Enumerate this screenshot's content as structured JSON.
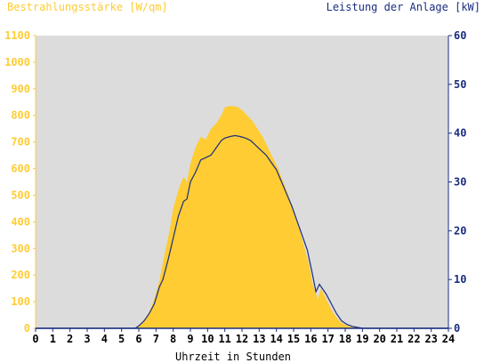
{
  "chart_data": {
    "type": "area",
    "left_axis_label": "Bestrahlungsstärke [W/qm]",
    "right_axis_label": "Leistung der Anlage [kW]",
    "xlabel": "Uhrzeit in Stunden",
    "xlim": [
      0,
      24
    ],
    "ylim_left": [
      0,
      1100
    ],
    "ylim_right": [
      0,
      60
    ],
    "x_ticks": [
      0,
      1,
      2,
      3,
      4,
      5,
      6,
      7,
      8,
      9,
      10,
      11,
      12,
      13,
      14,
      15,
      16,
      17,
      18,
      19,
      20,
      21,
      22,
      23,
      24
    ],
    "y_left_ticks": [
      0,
      100,
      200,
      300,
      400,
      500,
      600,
      700,
      800,
      900,
      1000,
      1100
    ],
    "y_right_ticks": [
      0,
      10,
      20,
      30,
      40,
      50,
      60
    ],
    "grid": false,
    "colors": {
      "plot_bg": "#dcdcdc",
      "irradiance": "#ffcc33",
      "power": "#1a2e80",
      "left_axis": "#ffcc33",
      "right_axis": "#1a2e80"
    },
    "series": [
      {
        "axis": "left",
        "kind": "area",
        "x": [
          0,
          5.8,
          6.0,
          6.3,
          6.6,
          6.9,
          7.2,
          7.5,
          7.8,
          8.0,
          8.3,
          8.6,
          8.8,
          9.0,
          9.3,
          9.6,
          9.9,
          10.2,
          10.5,
          10.8,
          11.0,
          11.2,
          11.5,
          11.8,
          12.0,
          12.3,
          12.6,
          12.9,
          13.2,
          13.5,
          13.8,
          14.1,
          14.4,
          14.7,
          15.0,
          15.3,
          15.6,
          15.9,
          16.1,
          16.4,
          16.6,
          16.9,
          17.2,
          17.5,
          17.8,
          18.1,
          18.4,
          18.7,
          19.0,
          24
        ],
        "y": [
          0,
          0,
          10,
          30,
          60,
          110,
          180,
          280,
          370,
          450,
          520,
          570,
          550,
          620,
          680,
          720,
          710,
          750,
          770,
          800,
          830,
          835,
          835,
          830,
          820,
          800,
          780,
          750,
          720,
          680,
          640,
          600,
          550,
          500,
          440,
          380,
          310,
          240,
          170,
          110,
          150,
          110,
          70,
          40,
          20,
          10,
          5,
          2,
          0,
          0
        ]
      },
      {
        "axis": "right",
        "kind": "line",
        "x": [
          0,
          5.8,
          6.0,
          6.3,
          6.6,
          6.9,
          7.2,
          7.4,
          7.7,
          8.0,
          8.3,
          8.6,
          8.8,
          9.0,
          9.3,
          9.6,
          9.9,
          10.2,
          10.5,
          10.8,
          11.0,
          11.3,
          11.6,
          11.9,
          12.2,
          12.5,
          12.8,
          13.1,
          13.4,
          13.7,
          14.0,
          14.3,
          14.6,
          14.9,
          15.2,
          15.5,
          15.8,
          16.1,
          16.3,
          16.5,
          16.7,
          16.9,
          17.2,
          17.5,
          17.8,
          18.1,
          18.4,
          18.7,
          19.0,
          24
        ],
        "y": [
          0,
          0,
          0.5,
          1.5,
          3,
          5,
          8.5,
          10,
          14,
          18.5,
          23,
          26,
          26.5,
          30,
          32,
          34.5,
          35,
          35.5,
          37,
          38.5,
          39,
          39.3,
          39.5,
          39.3,
          39,
          38.5,
          37.5,
          36.5,
          35.5,
          34,
          32.5,
          30,
          27.5,
          25,
          22,
          19,
          16,
          11,
          7.5,
          9,
          8,
          7,
          5,
          3,
          1.5,
          0.8,
          0.4,
          0.2,
          0,
          0
        ]
      }
    ]
  }
}
